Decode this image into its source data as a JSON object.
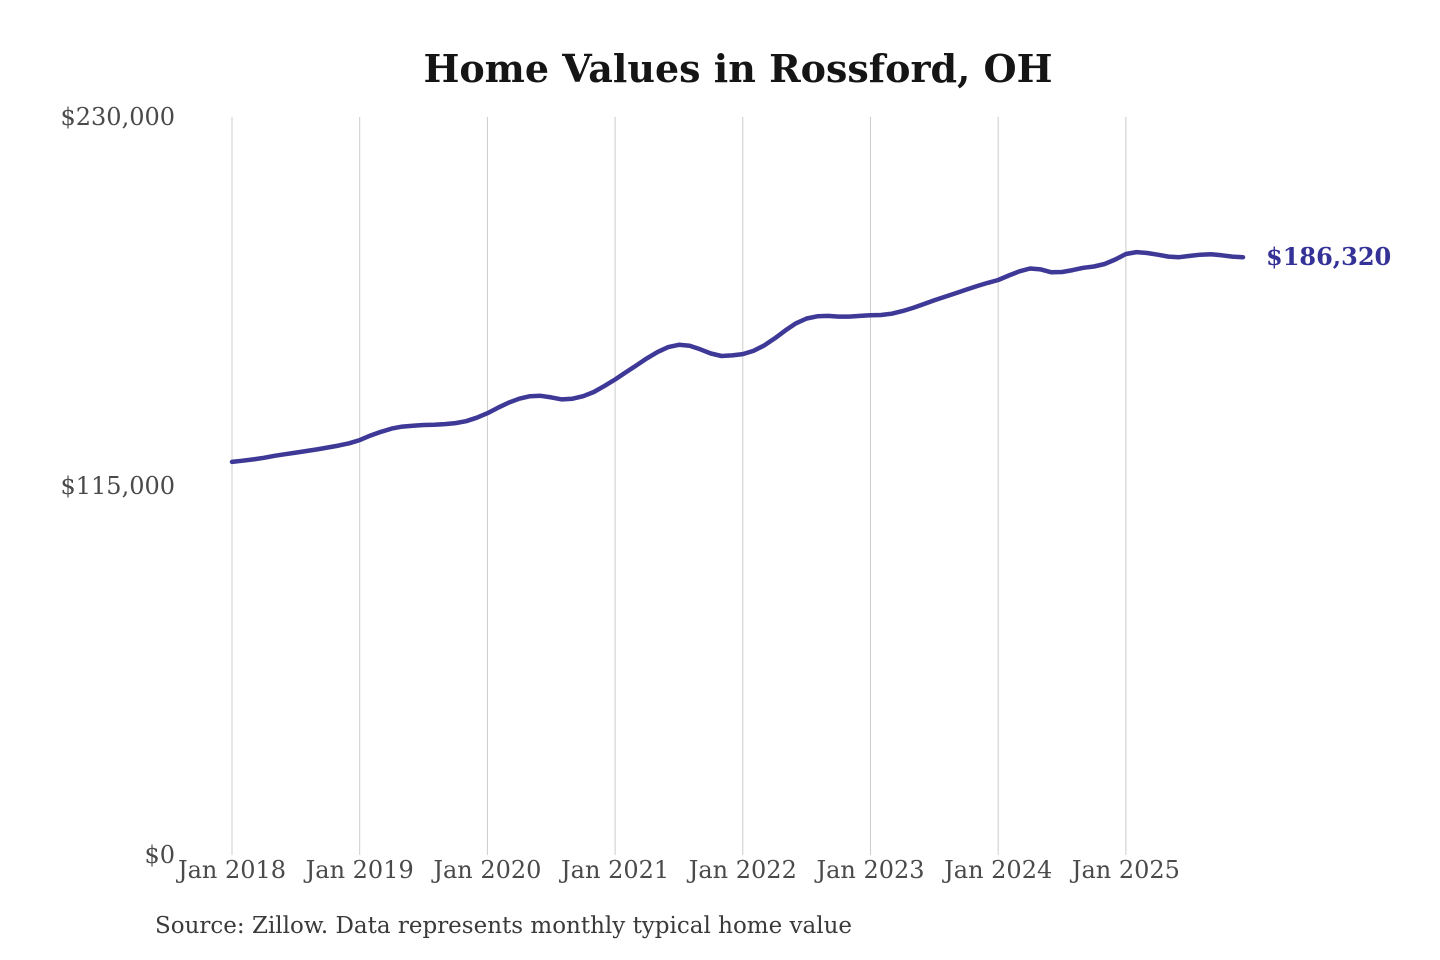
{
  "chart_data": {
    "type": "line",
    "title": "Home Values in Rossford, OH",
    "series_name": "Monthly typical home value",
    "unit": "USD",
    "source_note": "Source: Zillow. Data represents monthly typical home value",
    "end_label": "$186,320",
    "end_value": 186320,
    "ylim": [
      0,
      230000
    ],
    "grid": "vertical-only",
    "legend": "none",
    "colors": {
      "line": "#3e3897",
      "end_label": "#343197",
      "grid": "#cccccc",
      "axis_text": "#4a4a4a",
      "title_text": "#151515",
      "background": "#ffffff"
    },
    "y_ticks": [
      {
        "label": "$0",
        "value": 0
      },
      {
        "label": "$115,000",
        "value": 115000
      },
      {
        "label": "$230,000",
        "value": 230000
      }
    ],
    "x_ticks": [
      "Jan 2018",
      "Jan 2019",
      "Jan 2020",
      "Jan 2021",
      "Jan 2022",
      "Jan 2023",
      "Jan 2024",
      "Jan 2025"
    ],
    "months": [
      "2018-01",
      "2018-02",
      "2018-03",
      "2018-04",
      "2018-05",
      "2018-06",
      "2018-07",
      "2018-08",
      "2018-09",
      "2018-10",
      "2018-11",
      "2018-12",
      "2019-01",
      "2019-02",
      "2019-03",
      "2019-04",
      "2019-05",
      "2019-06",
      "2019-07",
      "2019-08",
      "2019-09",
      "2019-10",
      "2019-11",
      "2019-12",
      "2020-01",
      "2020-02",
      "2020-03",
      "2020-04",
      "2020-05",
      "2020-06",
      "2020-07",
      "2020-08",
      "2020-09",
      "2020-10",
      "2020-11",
      "2020-12",
      "2021-01",
      "2021-02",
      "2021-03",
      "2021-04",
      "2021-05",
      "2021-06",
      "2021-07",
      "2021-08",
      "2021-09",
      "2021-10",
      "2021-11",
      "2021-12",
      "2022-01",
      "2022-02",
      "2022-03",
      "2022-04",
      "2022-05",
      "2022-06",
      "2022-07",
      "2022-08",
      "2022-09",
      "2022-10",
      "2022-11",
      "2022-12",
      "2023-01",
      "2023-02",
      "2023-03",
      "2023-04",
      "2023-05",
      "2023-06",
      "2023-07",
      "2023-08",
      "2023-09",
      "2023-10",
      "2023-11",
      "2023-12",
      "2024-01",
      "2024-02",
      "2024-03",
      "2024-04",
      "2024-05",
      "2024-06",
      "2024-07",
      "2024-08",
      "2024-09",
      "2024-10",
      "2024-11",
      "2024-12",
      "2025-01",
      "2025-02",
      "2025-03",
      "2025-04",
      "2025-05",
      "2025-06",
      "2025-07",
      "2025-08",
      "2025-09",
      "2025-10",
      "2025-11",
      "2025-12"
    ],
    "values": [
      122500,
      122900,
      123300,
      123800,
      124400,
      124900,
      125400,
      125900,
      126400,
      127000,
      127600,
      128300,
      129300,
      130700,
      131900,
      132900,
      133500,
      133800,
      134000,
      134100,
      134300,
      134600,
      135200,
      136300,
      137700,
      139400,
      141000,
      142200,
      143000,
      143100,
      142600,
      142000,
      142200,
      143000,
      144300,
      146200,
      148200,
      150400,
      152600,
      154800,
      156800,
      158300,
      159000,
      158700,
      157600,
      156300,
      155500,
      155700,
      156100,
      157100,
      158800,
      161000,
      163500,
      165700,
      167200,
      167900,
      168000,
      167800,
      167800,
      168000,
      168200,
      168300,
      168700,
      169500,
      170500,
      171700,
      172900,
      174000,
      175100,
      176200,
      177300,
      178300,
      179200,
      180600,
      181900,
      182800,
      182500,
      181600,
      181700,
      182300,
      183000,
      183400,
      184200,
      185600,
      187300,
      187900,
      187600,
      187100,
      186500,
      186300,
      186700,
      187100,
      187200,
      186900,
      186500,
      186320
    ]
  }
}
